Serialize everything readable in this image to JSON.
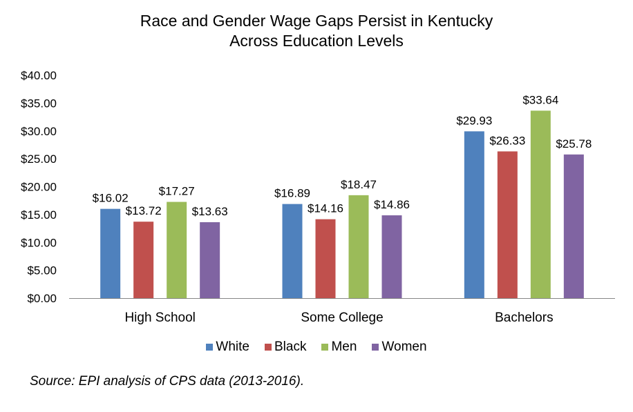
{
  "chart_data": {
    "type": "bar",
    "title_line1": "Race and Gender Wage Gaps Persist in Kentucky",
    "title_line2": "Across Education Levels",
    "categories": [
      "High School",
      "Some College",
      "Bachelors"
    ],
    "series": [
      {
        "name": "White",
        "color": "#4F81BD",
        "values": [
          16.02,
          16.89,
          29.93
        ],
        "labels": [
          "$16.02",
          "$16.89",
          "$29.93"
        ]
      },
      {
        "name": "Black",
        "color": "#C0504D",
        "values": [
          13.72,
          14.16,
          26.33
        ],
        "labels": [
          "$13.72",
          "$14.16",
          "$26.33"
        ]
      },
      {
        "name": "Men",
        "color": "#9BBB59",
        "values": [
          17.27,
          18.47,
          33.64
        ],
        "labels": [
          "$17.27",
          "$18.47",
          "$33.64"
        ]
      },
      {
        "name": "Women",
        "color": "#8064A2",
        "values": [
          13.63,
          14.86,
          25.78
        ],
        "labels": [
          "$13.63",
          "$14.86",
          "$25.78"
        ]
      }
    ],
    "yticks": [
      "$0.00",
      "$5.00",
      "$10.00",
      "$15.00",
      "$20.00",
      "$25.00",
      "$30.00",
      "$35.00",
      "$40.00"
    ],
    "ylim": [
      0,
      40
    ],
    "grid": false,
    "legend_position": "bottom",
    "source": "Source: EPI analysis of CPS data (2013-2016)."
  }
}
